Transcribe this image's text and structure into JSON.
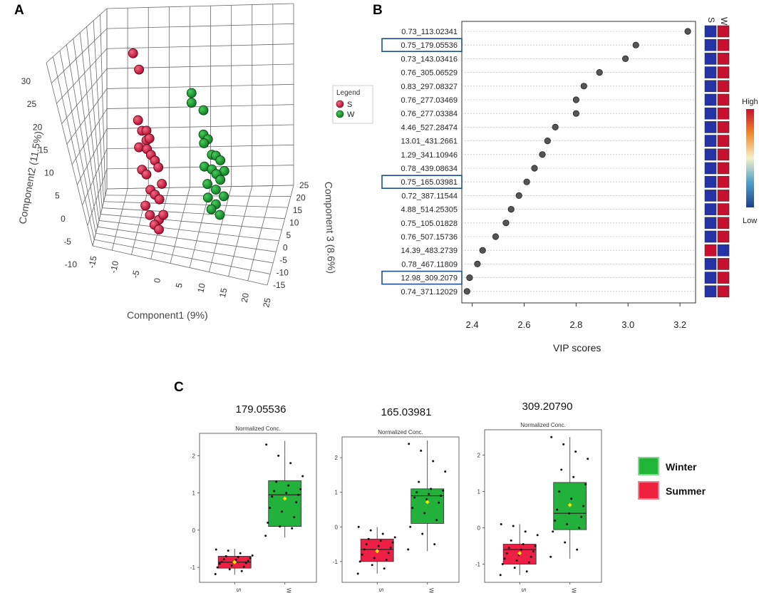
{
  "panel_labels": {
    "a": "A",
    "b": "B",
    "c": "C"
  },
  "chart_data": [
    {
      "id": "A",
      "type": "scatter",
      "subtype": "3d",
      "xlabel": "Component1 (9%)",
      "ylabel": "Component2 (11.5%)",
      "zlabel": "Component 3 (8.6%)",
      "x_ticks": [
        "-15",
        "-10",
        "-5",
        "0",
        "5",
        "10",
        "15",
        "20",
        "25"
      ],
      "y_ticks": [
        "30",
        "25",
        "20",
        "15",
        "10",
        "5",
        "0",
        "-5",
        "-10"
      ],
      "z_ticks": [
        "25",
        "20",
        "15",
        "10",
        "5",
        "0",
        "-5",
        "-10",
        "-15"
      ],
      "legend": {
        "title": "Legend",
        "entries": [
          "S",
          "W"
        ],
        "colors": [
          "#d0153f",
          "#139a2c"
        ]
      },
      "series": [
        {
          "name": "S",
          "color": "#d0153f",
          "points": [
            [
              -9,
              27,
              0
            ],
            [
              -8,
              23,
              4
            ],
            [
              -8,
              13,
              2
            ],
            [
              -7,
              11,
              2
            ],
            [
              -6,
              11,
              3
            ],
            [
              -6,
              9,
              3
            ],
            [
              -5,
              10,
              1
            ],
            [
              -8,
              7,
              4
            ],
            [
              -6,
              7,
              4
            ],
            [
              -5,
              6,
              4
            ],
            [
              -4,
              5,
              4
            ],
            [
              -3,
              4,
              3
            ],
            [
              -7,
              3,
              2
            ],
            [
              -6,
              2,
              3
            ],
            [
              -2,
              1,
              2
            ],
            [
              -5,
              -1,
              3
            ],
            [
              -4,
              -2,
              4
            ],
            [
              -3,
              -3,
              5
            ],
            [
              -6,
              -4,
              1
            ],
            [
              -5,
              -6,
              2
            ],
            [
              -3,
              -7,
              4
            ],
            [
              -2,
              -6,
              5
            ],
            [
              -4,
              -8,
              3
            ],
            [
              -3,
              -9,
              4
            ]
          ]
        },
        {
          "name": "W",
          "color": "#139a2c",
          "points": [
            [
              6,
              22,
              -2
            ],
            [
              6,
              20,
              -2
            ],
            [
              9,
              19,
              -2
            ],
            [
              9,
              14,
              -2
            ],
            [
              10,
              13,
              -1
            ],
            [
              9,
              12,
              -1
            ],
            [
              11,
              10,
              -1
            ],
            [
              12,
              10,
              -1
            ],
            [
              13,
              9,
              0
            ],
            [
              9,
              7,
              0
            ],
            [
              11,
              7,
              -1
            ],
            [
              14,
              7,
              0
            ],
            [
              12,
              6,
              0
            ],
            [
              13,
              5,
              0
            ],
            [
              10,
              4,
              -2
            ],
            [
              12,
              3,
              -1
            ],
            [
              14,
              2,
              -1
            ],
            [
              10,
              1,
              -1
            ],
            [
              12,
              0,
              -1
            ],
            [
              11,
              -1,
              -2
            ],
            [
              13,
              -2,
              -1
            ]
          ]
        }
      ]
    },
    {
      "id": "B",
      "type": "scatter",
      "subtype": "vip-dot",
      "xlabel": "VIP scores",
      "x_ticks": [
        2.4,
        2.6,
        2.8,
        3.0,
        3.2
      ],
      "xlim": [
        2.36,
        3.26
      ],
      "features": [
        "0.73_113.02341",
        "0.75_179.05536",
        "0.73_143.03416",
        "0.76_305.06529",
        "0.83_297.08327",
        "0.76_277.03469",
        "0.76_277.03384",
        "4.46_527.28474",
        "13.01_431.2661",
        "1.29_341.10946",
        "0.78_439.08634",
        "0.75_165.03981",
        "0.72_387.11544",
        "4.88_514.25305",
        "0.75_105.01828",
        "0.76_507.15736",
        "14.39_483.2739",
        "0.78_467.11809",
        "12.98_309.2079",
        "0.74_371.12029"
      ],
      "values": [
        3.23,
        3.03,
        2.99,
        2.89,
        2.83,
        2.8,
        2.8,
        2.72,
        2.69,
        2.67,
        2.64,
        2.61,
        2.58,
        2.55,
        2.53,
        2.49,
        2.44,
        2.42,
        2.39,
        2.38
      ],
      "highlighted": [
        1,
        11,
        18
      ],
      "heat_columns": [
        "S",
        "W"
      ],
      "heat": [
        [
          "low",
          "high"
        ],
        [
          "low",
          "high"
        ],
        [
          "low",
          "high"
        ],
        [
          "low",
          "high"
        ],
        [
          "low",
          "high"
        ],
        [
          "low",
          "high"
        ],
        [
          "low",
          "high"
        ],
        [
          "low",
          "high"
        ],
        [
          "low",
          "high"
        ],
        [
          "low",
          "high"
        ],
        [
          "low",
          "high"
        ],
        [
          "low",
          "high"
        ],
        [
          "low",
          "high"
        ],
        [
          "low",
          "high"
        ],
        [
          "low",
          "high"
        ],
        [
          "low",
          "high"
        ],
        [
          "high",
          "low"
        ],
        [
          "low",
          "high"
        ],
        [
          "low",
          "high"
        ],
        [
          "low",
          "high"
        ]
      ],
      "colorbar": {
        "high": "High",
        "low": "Low"
      }
    },
    {
      "id": "C",
      "type": "box",
      "legend": {
        "entries": [
          "Winter",
          "Summer"
        ],
        "colors": [
          "#21b537",
          "#f0213f"
        ]
      },
      "categories": [
        "S",
        "W"
      ],
      "panels": [
        {
          "title": "179.05536",
          "subtitle": "Normalized Conc.",
          "y_ticks": [
            2,
            1,
            0,
            -1
          ],
          "ylim": [
            -1.4,
            2.6
          ],
          "boxes": [
            {
              "name": "S",
              "q1": -1.02,
              "median": -0.86,
              "q3": -0.7,
              "wlow": -1.2,
              "whigh": -0.5,
              "mean": -0.86,
              "points": [
                -1.18,
                -1.1,
                -1.05,
                -1.0,
                -0.98,
                -0.95,
                -0.9,
                -0.88,
                -0.86,
                -0.85,
                -0.82,
                -0.8,
                -0.78,
                -0.75,
                -0.72,
                -0.7,
                -0.68,
                -0.62,
                -0.55,
                -0.52
              ]
            },
            {
              "name": "W",
              "q1": 0.1,
              "median": 0.95,
              "q3": 1.33,
              "wlow": -0.2,
              "whigh": 2.4,
              "mean": 0.85,
              "points": [
                -0.15,
                0.05,
                0.1,
                0.2,
                0.35,
                0.5,
                0.6,
                0.75,
                0.85,
                0.9,
                0.95,
                1.0,
                1.05,
                1.1,
                1.2,
                1.3,
                1.45,
                1.8,
                2.0,
                2.3
              ]
            }
          ]
        },
        {
          "title": "165.03981",
          "subtitle": "Normalized Conc.",
          "y_ticks": [
            2,
            1,
            0,
            -1
          ],
          "ylim": [
            -1.6,
            2.6
          ],
          "boxes": [
            {
              "name": "S",
              "q1": -1.0,
              "median": -0.65,
              "q3": -0.35,
              "wlow": -1.35,
              "whigh": 0.0,
              "mean": -0.7,
              "points": [
                -1.35,
                -1.2,
                -1.1,
                -1.0,
                -0.95,
                -0.9,
                -0.8,
                -0.75,
                -0.7,
                -0.65,
                -0.6,
                -0.55,
                -0.5,
                -0.45,
                -0.4,
                -0.35,
                -0.3,
                -0.2,
                -0.1,
                0.0
              ]
            },
            {
              "name": "W",
              "q1": 0.1,
              "median": 0.9,
              "q3": 1.1,
              "wlow": -0.7,
              "whigh": 2.5,
              "mean": 0.72,
              "points": [
                -0.65,
                -0.5,
                -0.2,
                0.0,
                0.2,
                0.4,
                0.55,
                0.7,
                0.8,
                0.85,
                0.9,
                0.95,
                1.0,
                1.05,
                1.1,
                1.3,
                1.6,
                1.9,
                2.2,
                2.4
              ]
            }
          ]
        },
        {
          "title": "309.20790",
          "subtitle": "Normalized Conc.",
          "y_ticks": [
            2,
            1,
            0,
            -1
          ],
          "ylim": [
            -1.5,
            2.7
          ],
          "boxes": [
            {
              "name": "S",
              "q1": -1.0,
              "median": -0.6,
              "q3": -0.45,
              "wlow": -1.3,
              "whigh": 0.1,
              "mean": -0.7,
              "points": [
                -1.3,
                -1.2,
                -1.1,
                -1.0,
                -0.95,
                -0.9,
                -0.85,
                -0.8,
                -0.75,
                -0.7,
                -0.65,
                -0.6,
                -0.55,
                -0.5,
                -0.45,
                -0.35,
                -0.2,
                -0.1,
                0.05,
                0.1
              ]
            },
            {
              "name": "W",
              "q1": -0.05,
              "median": 0.4,
              "q3": 1.25,
              "wlow": -0.85,
              "whigh": 2.5,
              "mean": 0.63,
              "points": [
                -0.8,
                -0.6,
                -0.4,
                -0.1,
                0.0,
                0.1,
                0.2,
                0.3,
                0.4,
                0.5,
                0.6,
                0.8,
                1.0,
                1.2,
                1.4,
                1.6,
                1.9,
                2.1,
                2.3,
                2.5
              ]
            }
          ]
        }
      ]
    }
  ]
}
